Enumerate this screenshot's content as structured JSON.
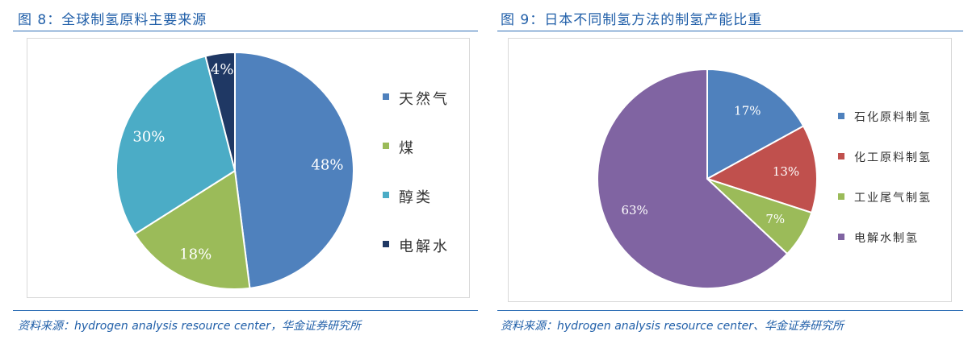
{
  "figures": [
    {
      "title": "图 8：全球制氢原料主要来源",
      "source": "资料来源：hydrogen analysis resource center，华金证券研究所"
    },
    {
      "title": "图 9：日本不同制氢方法的制氢产能比重",
      "source": "资料来源：hydrogen analysis resource center、华金证券研究所"
    }
  ],
  "chart_data": [
    {
      "type": "pie",
      "title": "",
      "slices": [
        {
          "name": "天然气",
          "value": 48,
          "label": "48%",
          "color": "#4f81bd"
        },
        {
          "name": "煤",
          "value": 18,
          "label": "18%",
          "color": "#9bbb59"
        },
        {
          "name": "醇类",
          "value": 30,
          "label": "30%",
          "color": "#4bacc6"
        },
        {
          "name": "电解水",
          "value": 4,
          "label": "4%",
          "color": "#1f3864"
        }
      ],
      "start": "12 o'clock",
      "direction": "clockwise",
      "legend": "right"
    },
    {
      "type": "pie",
      "title": "",
      "slices": [
        {
          "name": "石化原料制氢",
          "value": 17,
          "label": "17%",
          "color": "#4f81bd"
        },
        {
          "name": "化工原料制氢",
          "value": 13,
          "label": "13%",
          "color": "#c0504d"
        },
        {
          "name": "工业尾气制氢",
          "value": 7,
          "label": "7%",
          "color": "#9bbb59"
        },
        {
          "name": "电解水制氢",
          "value": 63,
          "label": "63%",
          "color": "#8064a2"
        }
      ],
      "start": "12 o'clock",
      "direction": "clockwise",
      "legend": "right"
    }
  ]
}
